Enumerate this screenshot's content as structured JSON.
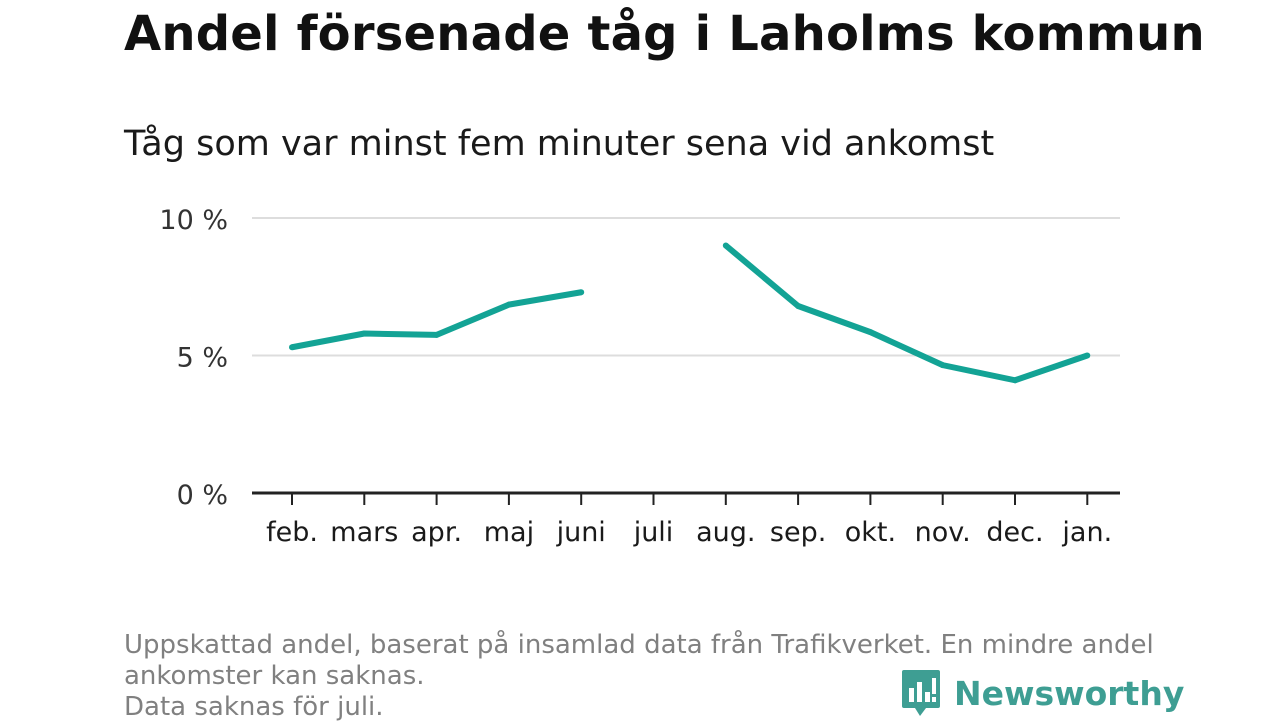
{
  "title": "Andel försenade tåg i Laholms kommun",
  "subtitle": "Tåg som var minst fem minuter sena vid ankomst",
  "footnote": {
    "line1": "Uppskattad andel, baserat på insamlad data från Trafikverket. En mindre andel",
    "line2": "ankomster kan saknas.",
    "line3": "Data saknas för juli."
  },
  "logo": {
    "text": "Newsworthy",
    "icon": "newsworthy-logo-icon"
  },
  "colors": {
    "line": "#13a395",
    "grid": "#dddddd",
    "axis": "#222222",
    "logo": "#3e9e93"
  },
  "chart_data": {
    "type": "line",
    "categories": [
      "feb.",
      "mars",
      "apr.",
      "maj",
      "juni",
      "juli",
      "aug.",
      "sep.",
      "okt.",
      "nov.",
      "dec.",
      "jan."
    ],
    "series": [
      {
        "values": [
          5.3,
          5.8,
          5.75,
          6.85,
          7.3,
          null,
          9.0,
          6.8,
          5.85,
          4.65,
          4.1,
          5.0
        ]
      }
    ],
    "ylim": [
      0,
      10
    ],
    "yticks": [
      0,
      5,
      10
    ],
    "ytick_labels": [
      "0 %",
      "5 %",
      "10 %"
    ],
    "grid": true,
    "xlabel": "",
    "ylabel": ""
  }
}
